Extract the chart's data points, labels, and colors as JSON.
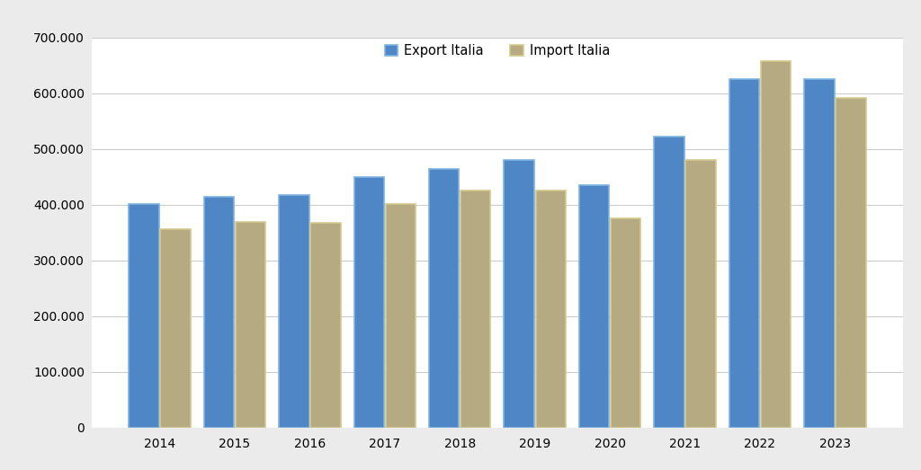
{
  "years": [
    2014,
    2015,
    2016,
    2017,
    2018,
    2019,
    2020,
    2021,
    2022,
    2023
  ],
  "export": [
    401000,
    414000,
    418000,
    449000,
    464000,
    480000,
    436000,
    522000,
    626000,
    626000
  ],
  "import": [
    357000,
    369000,
    368000,
    402000,
    426000,
    425000,
    375000,
    480000,
    658000,
    591000
  ],
  "export_color": "#4F86C6",
  "import_color": "#B5AA82",
  "export_edge_color": "#7FB3E0",
  "import_edge_color": "#D4C98E",
  "legend_labels": [
    "Export Italia",
    "Import Italia"
  ],
  "ylim": [
    0,
    700000
  ],
  "ytick_step": 100000,
  "background_color": "#EBEBEB",
  "plot_bg_color": "#FFFFFF",
  "grid_color": "#CCCCCC",
  "bar_width": 0.4,
  "bar_gap": 0.02
}
